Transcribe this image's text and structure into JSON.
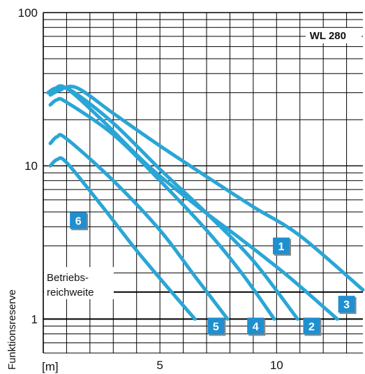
{
  "chart_data": {
    "type": "line",
    "title": "",
    "model_label": "WL 280",
    "ylabel": "Funktionsreserve",
    "x_unit_label": "[m]",
    "y_scale": "log",
    "xlim": [
      0,
      13.7
    ],
    "ylim": [
      0.6,
      100
    ],
    "x_ticks": [
      5,
      10
    ],
    "y_ticks": [
      1,
      10,
      100
    ],
    "grid": true,
    "annotation": {
      "line1": "Betriebs-",
      "line2": "reichweite"
    },
    "reference_lines": [
      1,
      1.5
    ],
    "colors": {
      "series": "#2aa6d6",
      "badge": "#1f8fd0",
      "grid": "#000000"
    },
    "series": [
      {
        "label": "1",
        "x": [
          0.3,
          0.8,
          1.5,
          3,
          5,
          7,
          9,
          11,
          13.7
        ],
        "y": [
          30,
          32,
          32,
          22,
          13.5,
          8.5,
          5.4,
          3.5,
          1.55
        ]
      },
      {
        "label": "2",
        "x": [
          0.3,
          0.7,
          1.2,
          3,
          5,
          7,
          9,
          10.9
        ],
        "y": [
          29,
          31,
          31,
          19,
          9.5,
          4.9,
          2.4,
          1.0
        ]
      },
      {
        "label": "3",
        "x": [
          0.2,
          0.5,
          1,
          2.5,
          4.5,
          6.5,
          8.5,
          10.5,
          12.6
        ],
        "y": [
          30,
          32,
          32,
          20,
          10,
          5.6,
          3.3,
          1.9,
          1.0
        ]
      },
      {
        "label": "4",
        "x": [
          0.3,
          0.6,
          1,
          3,
          5,
          7,
          8.5,
          9.9
        ],
        "y": [
          25,
          27,
          26,
          16,
          8,
          3.8,
          2.0,
          1.0
        ]
      },
      {
        "label": "5",
        "x": [
          0.3,
          0.6,
          1,
          3,
          5,
          6.5,
          7.9
        ],
        "y": [
          14,
          15.5,
          15,
          8,
          3.8,
          1.9,
          1.0
        ]
      },
      {
        "label": "6",
        "x": [
          0.3,
          0.6,
          1,
          2.5,
          4,
          5.5,
          6.5
        ],
        "y": [
          10,
          11,
          10.5,
          5.5,
          2.8,
          1.5,
          1.0
        ]
      }
    ],
    "badges": [
      {
        "label": "1",
        "x": 10.2,
        "y": 3.0
      },
      {
        "label": "2",
        "x": 11.5,
        "y": 0.9
      },
      {
        "label": "3",
        "x": 13.0,
        "y": 1.25
      },
      {
        "label": "4",
        "x": 9.1,
        "y": 0.9
      },
      {
        "label": "5",
        "x": 7.4,
        "y": 0.9
      },
      {
        "label": "6",
        "x": 1.5,
        "y": 4.4
      }
    ]
  }
}
